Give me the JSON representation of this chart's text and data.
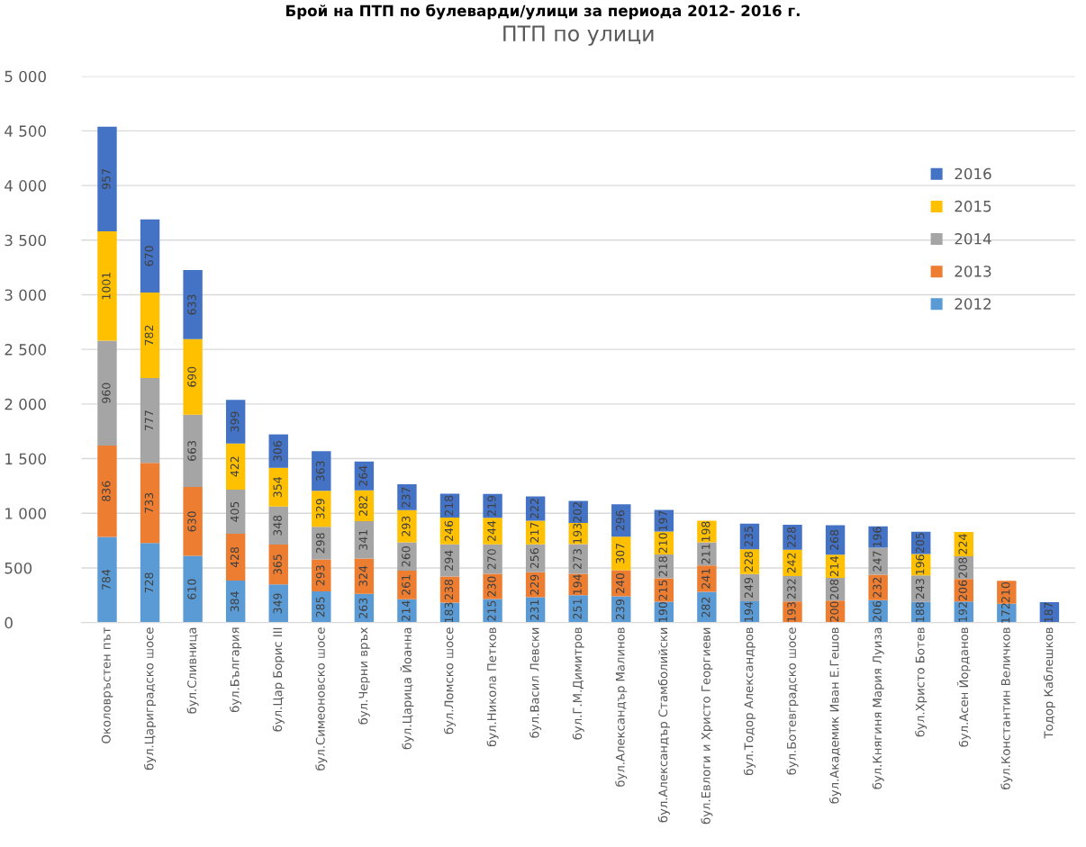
{
  "chart_data": {
    "type": "bar",
    "title": "ПТП по улици",
    "stacked": true,
    "annotations": [
      "Брой на ПТП по булеварди/улици за периода 2012- 2016 г."
    ],
    "categories": [
      "Околовръстен път",
      "бул.Цариградско шосе",
      "бул.Сливница",
      "бул.България",
      "бул.Цар Борис III",
      "бул.Симеоновско шосе",
      "бул.Черни връх",
      "бул.Царица Йоанна",
      "бул.Ломско шосе",
      "бул.Никола Петков",
      "бул.Васил Левски",
      "бул.Г.М.Димитров",
      "бул.Александър Малинов",
      "бул.Александър Стамболийски",
      "бул.Евлоги и Христо Георгиеви",
      "бул.Тодор Александров",
      "бул.Ботевградско шосе",
      "бул.Академик Иван Е.Гешов",
      "бул.Княгиня Мария Луиза",
      "бул.Христо Ботев",
      "бул.Асен Йорданов",
      "бул.Константин Величков",
      "Тодор Каблешков"
    ],
    "series": [
      {
        "name": "2012",
        "color": "#5b9bd5",
        "values": [
          784,
          728,
          610,
          384,
          349,
          285,
          263,
          214,
          183,
          215,
          231,
          251,
          239,
          190,
          282,
          194,
          0,
          0,
          206,
          188,
          192,
          172,
          0
        ],
        "value_labels": [
          "784",
          "728",
          "610",
          "384",
          "349",
          "285",
          "263",
          "214",
          "183",
          "215",
          "231",
          "251",
          "239",
          "190",
          "282",
          "194",
          null,
          null,
          "206",
          "188",
          "192",
          "172",
          null
        ]
      },
      {
        "name": "2013",
        "color": "#ed7d31",
        "values": [
          836,
          733,
          630,
          428,
          365,
          293,
          324,
          261,
          238,
          230,
          229,
          194,
          240,
          215,
          241,
          0,
          193,
          200,
          232,
          0,
          206,
          210,
          0
        ],
        "value_labels": [
          "836",
          "733",
          "630",
          "428",
          "365",
          "293",
          "324",
          "261",
          "238",
          "230",
          "229",
          "194",
          "240",
          "215",
          "241",
          null,
          "193",
          "200",
          "232",
          null,
          "206",
          "210",
          null
        ]
      },
      {
        "name": "2014",
        "color": "#a5a5a5",
        "values": [
          960,
          777,
          663,
          405,
          348,
          298,
          341,
          260,
          294,
          270,
          256,
          273,
          0,
          218,
          211,
          249,
          232,
          208,
          247,
          243,
          208,
          0,
          0
        ],
        "value_labels": [
          "960",
          "777",
          "663",
          "405",
          "348",
          "298",
          "341",
          "260",
          "294",
          "270",
          "256",
          "273",
          null,
          "218",
          "211",
          "249",
          "232",
          "208",
          "247",
          "243",
          "208",
          null,
          null
        ]
      },
      {
        "name": "2015",
        "color": "#ffc000",
        "values": [
          1001,
          782,
          690,
          422,
          354,
          329,
          282,
          293,
          246,
          244,
          217,
          193,
          307,
          210,
          198,
          228,
          242,
          214,
          0,
          196,
          224,
          0,
          0
        ],
        "value_labels": [
          "1001",
          "782",
          "690",
          "422",
          "354",
          "329",
          "282",
          "293",
          "246",
          "244",
          "217",
          "193",
          "307",
          "210",
          "198",
          "228",
          "242",
          "214",
          null,
          "196",
          "224",
          null,
          null
        ]
      },
      {
        "name": "2016",
        "color": "#4472c4",
        "values": [
          957,
          670,
          633,
          399,
          306,
          363,
          264,
          237,
          218,
          219,
          222,
          202,
          296,
          197,
          0,
          235,
          228,
          268,
          196,
          205,
          0,
          0,
          187
        ],
        "value_labels": [
          "957",
          "670",
          "633",
          "399",
          "306",
          "363",
          "264",
          "237",
          "218",
          "219",
          "222",
          "202",
          "296",
          "197",
          null,
          "235",
          "228",
          "268",
          "196",
          "205",
          null,
          null,
          "187"
        ]
      }
    ],
    "ylim": [
      0,
      5000
    ],
    "yticks": [
      0,
      {
        "value": 500,
        "label": "500"
      },
      {
        "value": 1000,
        "label": "1 000"
      },
      {
        "value": 1500,
        "label": "1 500"
      },
      {
        "value": 2000,
        "label": "2 000"
      },
      {
        "value": 2500,
        "label": "2 500"
      },
      {
        "value": 3000,
        "label": "3 000"
      },
      {
        "value": 3500,
        "label": "3 500"
      },
      {
        "value": 4000,
        "label": "4 000"
      },
      {
        "value": 4500,
        "label": "4 500"
      },
      {
        "value": 5000,
        "label": "5 000"
      }
    ],
    "grid": "y",
    "legend": "right"
  }
}
